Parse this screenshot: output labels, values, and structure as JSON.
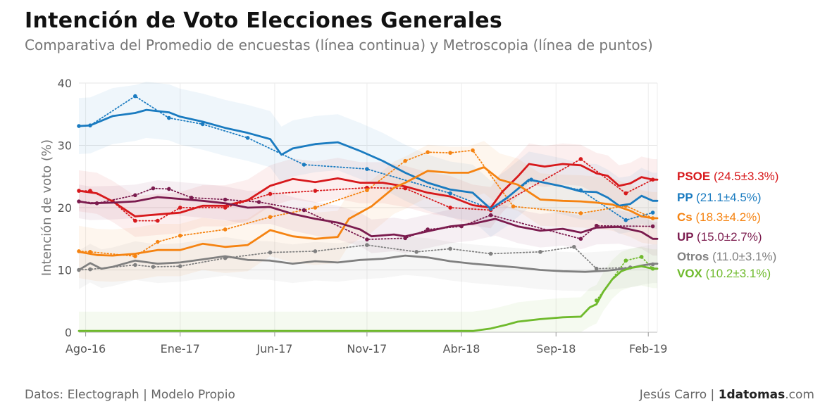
{
  "title": "Intención de Voto Elecciones Generales",
  "subtitle": "Comparativa del Promedio de encuestas (línea continua) y Metroscopia (línea de puntos)",
  "footer": {
    "source": "Datos: Electograph | Modelo Propio",
    "author": "Jesús Carro | ",
    "brand_bold": "1datomas",
    "brand_rest": ".com"
  },
  "chart_data": {
    "type": "line",
    "title": "Intención de Voto Elecciones Generales",
    "ylabel": "Intención de voto (%)",
    "xlabel": "",
    "ylim": [
      0,
      40
    ],
    "yticks": [
      0,
      10,
      20,
      30,
      40
    ],
    "x_range": [
      2016.55,
      2019.12
    ],
    "xticks": [
      {
        "label": "Ago-16",
        "x": 2016.58
      },
      {
        "label": "Ene-17",
        "x": 2017.0
      },
      {
        "label": "Jun-17",
        "x": 2017.42
      },
      {
        "label": "Nov-17",
        "x": 2017.83
      },
      {
        "label": "Abr-18",
        "x": 2018.25
      },
      {
        "label": "Sep-18",
        "x": 2018.67
      },
      {
        "label": "Feb-19",
        "x": 2019.08
      }
    ],
    "series": [
      {
        "name": "PSOE",
        "value_label": "(24.5±3.3%)",
        "color": "#d7191c",
        "ci": 3.3,
        "average": [
          [
            2016.55,
            22.7
          ],
          [
            2016.63,
            22.3
          ],
          [
            2016.7,
            21.0
          ],
          [
            2016.8,
            18.6
          ],
          [
            2016.9,
            18.9
          ],
          [
            2017.0,
            19.2
          ],
          [
            2017.1,
            20.3
          ],
          [
            2017.2,
            20.3
          ],
          [
            2017.3,
            21.2
          ],
          [
            2017.4,
            23.5
          ],
          [
            2017.5,
            24.6
          ],
          [
            2017.6,
            24.1
          ],
          [
            2017.7,
            24.7
          ],
          [
            2017.8,
            24.0
          ],
          [
            2017.9,
            24.0
          ],
          [
            2018.0,
            23.4
          ],
          [
            2018.1,
            22.4
          ],
          [
            2018.2,
            21.8
          ],
          [
            2018.3,
            20.4
          ],
          [
            2018.38,
            20.0
          ],
          [
            2018.43,
            22.5
          ],
          [
            2018.5,
            25.0
          ],
          [
            2018.55,
            27.0
          ],
          [
            2018.62,
            26.6
          ],
          [
            2018.7,
            27.0
          ],
          [
            2018.78,
            26.8
          ],
          [
            2018.85,
            25.5
          ],
          [
            2018.9,
            25.1
          ],
          [
            2018.95,
            23.5
          ],
          [
            2019.0,
            23.9
          ],
          [
            2019.05,
            24.9
          ],
          [
            2019.1,
            24.5
          ],
          [
            2019.12,
            24.5
          ]
        ],
        "metroscopia": [
          [
            2016.55,
            22.7
          ],
          [
            2016.6,
            22.7
          ],
          [
            2016.7,
            21.0
          ],
          [
            2016.8,
            17.9
          ],
          [
            2016.9,
            17.9
          ],
          [
            2017.0,
            20.0
          ],
          [
            2017.2,
            20.0
          ],
          [
            2017.4,
            22.2
          ],
          [
            2017.6,
            22.7
          ],
          [
            2017.83,
            23.2
          ],
          [
            2018.0,
            23.1
          ],
          [
            2018.2,
            20.0
          ],
          [
            2018.38,
            19.6
          ],
          [
            2018.78,
            27.8
          ],
          [
            2018.98,
            22.3
          ],
          [
            2019.1,
            24.5
          ]
        ]
      },
      {
        "name": "PP",
        "value_label": "(21.1±4.5%)",
        "color": "#1a7bc0",
        "ci": 4.5,
        "average": [
          [
            2016.55,
            33.1
          ],
          [
            2016.6,
            33.2
          ],
          [
            2016.7,
            34.7
          ],
          [
            2016.8,
            35.2
          ],
          [
            2016.85,
            35.7
          ],
          [
            2016.95,
            35.3
          ],
          [
            2017.0,
            34.6
          ],
          [
            2017.1,
            33.8
          ],
          [
            2017.2,
            32.8
          ],
          [
            2017.3,
            32.0
          ],
          [
            2017.4,
            31.0
          ],
          [
            2017.45,
            28.5
          ],
          [
            2017.5,
            29.5
          ],
          [
            2017.6,
            30.2
          ],
          [
            2017.7,
            30.5
          ],
          [
            2017.8,
            29.1
          ],
          [
            2017.9,
            27.5
          ],
          [
            2018.0,
            25.6
          ],
          [
            2018.1,
            24.0
          ],
          [
            2018.2,
            22.9
          ],
          [
            2018.3,
            22.4
          ],
          [
            2018.38,
            19.8
          ],
          [
            2018.45,
            21.5
          ],
          [
            2018.55,
            24.5
          ],
          [
            2018.62,
            24.0
          ],
          [
            2018.7,
            23.4
          ],
          [
            2018.78,
            22.6
          ],
          [
            2018.85,
            22.5
          ],
          [
            2018.9,
            21.6
          ],
          [
            2018.95,
            20.3
          ],
          [
            2019.0,
            20.6
          ],
          [
            2019.05,
            21.9
          ],
          [
            2019.1,
            21.1
          ],
          [
            2019.12,
            21.1
          ]
        ],
        "metroscopia": [
          [
            2016.55,
            33.1
          ],
          [
            2016.6,
            33.2
          ],
          [
            2016.8,
            37.9
          ],
          [
            2016.95,
            34.4
          ],
          [
            2017.1,
            33.4
          ],
          [
            2017.3,
            31.2
          ],
          [
            2017.55,
            26.9
          ],
          [
            2017.83,
            26.2
          ],
          [
            2018.2,
            22.3
          ],
          [
            2018.38,
            19.8
          ],
          [
            2018.56,
            24.5
          ],
          [
            2018.78,
            22.8
          ],
          [
            2018.98,
            18.0
          ],
          [
            2019.1,
            19.2
          ]
        ]
      },
      {
        "name": "Cs",
        "value_label": "(18.3±4.2%)",
        "color": "#f58311",
        "ci": 4.2,
        "average": [
          [
            2016.55,
            12.9
          ],
          [
            2016.63,
            12.4
          ],
          [
            2016.7,
            12.3
          ],
          [
            2016.8,
            12.6
          ],
          [
            2016.9,
            13.2
          ],
          [
            2017.0,
            13.2
          ],
          [
            2017.1,
            14.2
          ],
          [
            2017.2,
            13.7
          ],
          [
            2017.3,
            14.0
          ],
          [
            2017.4,
            16.4
          ],
          [
            2017.5,
            15.4
          ],
          [
            2017.6,
            15.0
          ],
          [
            2017.7,
            15.3
          ],
          [
            2017.75,
            18.2
          ],
          [
            2017.85,
            20.2
          ],
          [
            2017.95,
            23.2
          ],
          [
            2018.0,
            24.0
          ],
          [
            2018.1,
            25.9
          ],
          [
            2018.2,
            25.6
          ],
          [
            2018.28,
            25.6
          ],
          [
            2018.35,
            26.5
          ],
          [
            2018.42,
            24.5
          ],
          [
            2018.5,
            23.7
          ],
          [
            2018.55,
            22.5
          ],
          [
            2018.6,
            21.3
          ],
          [
            2018.7,
            21.1
          ],
          [
            2018.78,
            21.0
          ],
          [
            2018.85,
            20.8
          ],
          [
            2018.92,
            20.5
          ],
          [
            2019.0,
            19.5
          ],
          [
            2019.05,
            18.6
          ],
          [
            2019.1,
            18.3
          ],
          [
            2019.12,
            18.3
          ]
        ],
        "metroscopia": [
          [
            2016.55,
            13.0
          ],
          [
            2016.6,
            12.9
          ],
          [
            2016.8,
            12.2
          ],
          [
            2016.9,
            14.5
          ],
          [
            2017.0,
            15.5
          ],
          [
            2017.2,
            16.5
          ],
          [
            2017.4,
            18.5
          ],
          [
            2017.6,
            20.0
          ],
          [
            2017.83,
            22.8
          ],
          [
            2018.0,
            27.5
          ],
          [
            2018.1,
            28.9
          ],
          [
            2018.2,
            28.8
          ],
          [
            2018.3,
            29.2
          ],
          [
            2018.48,
            20.2
          ],
          [
            2018.78,
            19.1
          ],
          [
            2018.98,
            20.3
          ],
          [
            2019.1,
            18.3
          ]
        ]
      },
      {
        "name": "UP",
        "value_label": "(15.0±2.7%)",
        "color": "#7b1b4e",
        "ci": 2.7,
        "average": [
          [
            2016.55,
            21.0
          ],
          [
            2016.6,
            20.7
          ],
          [
            2016.7,
            20.8
          ],
          [
            2016.8,
            21.0
          ],
          [
            2016.9,
            21.7
          ],
          [
            2017.0,
            21.4
          ],
          [
            2017.1,
            21.1
          ],
          [
            2017.2,
            20.7
          ],
          [
            2017.3,
            20.0
          ],
          [
            2017.4,
            20.1
          ],
          [
            2017.5,
            19.0
          ],
          [
            2017.6,
            18.2
          ],
          [
            2017.7,
            17.6
          ],
          [
            2017.8,
            16.5
          ],
          [
            2017.85,
            15.4
          ],
          [
            2017.95,
            15.7
          ],
          [
            2018.0,
            15.4
          ],
          [
            2018.1,
            16.2
          ],
          [
            2018.2,
            17.0
          ],
          [
            2018.3,
            17.4
          ],
          [
            2018.4,
            18.2
          ],
          [
            2018.5,
            17.0
          ],
          [
            2018.6,
            16.3
          ],
          [
            2018.7,
            16.6
          ],
          [
            2018.78,
            16.0
          ],
          [
            2018.85,
            16.8
          ],
          [
            2018.95,
            16.9
          ],
          [
            2019.0,
            16.5
          ],
          [
            2019.05,
            16.1
          ],
          [
            2019.1,
            15.0
          ],
          [
            2019.12,
            15.0
          ]
        ],
        "metroscopia": [
          [
            2016.55,
            21.0
          ],
          [
            2016.63,
            20.7
          ],
          [
            2016.8,
            22.0
          ],
          [
            2016.88,
            23.1
          ],
          [
            2016.95,
            23.0
          ],
          [
            2017.05,
            21.6
          ],
          [
            2017.2,
            21.3
          ],
          [
            2017.35,
            20.9
          ],
          [
            2017.55,
            19.6
          ],
          [
            2017.83,
            14.9
          ],
          [
            2018.0,
            15.1
          ],
          [
            2018.1,
            16.5
          ],
          [
            2018.25,
            17.0
          ],
          [
            2018.38,
            18.8
          ],
          [
            2018.78,
            15.0
          ],
          [
            2018.85,
            17.1
          ],
          [
            2019.1,
            17.0
          ]
        ]
      },
      {
        "name": "Otros",
        "value_label": "(11.0±3.1%)",
        "color": "#808080",
        "ci": 3.1,
        "average": [
          [
            2016.55,
            10.0
          ],
          [
            2016.6,
            11.1
          ],
          [
            2016.65,
            10.2
          ],
          [
            2016.7,
            10.5
          ],
          [
            2016.8,
            11.5
          ],
          [
            2016.9,
            11.0
          ],
          [
            2017.0,
            11.2
          ],
          [
            2017.1,
            11.7
          ],
          [
            2017.2,
            12.2
          ],
          [
            2017.3,
            11.6
          ],
          [
            2017.4,
            11.5
          ],
          [
            2017.5,
            11.0
          ],
          [
            2017.6,
            11.4
          ],
          [
            2017.7,
            11.2
          ],
          [
            2017.8,
            11.6
          ],
          [
            2017.9,
            11.8
          ],
          [
            2018.0,
            12.3
          ],
          [
            2018.1,
            12.0
          ],
          [
            2018.2,
            11.4
          ],
          [
            2018.3,
            11.0
          ],
          [
            2018.4,
            10.7
          ],
          [
            2018.5,
            10.4
          ],
          [
            2018.6,
            10.0
          ],
          [
            2018.7,
            9.8
          ],
          [
            2018.8,
            9.7
          ],
          [
            2018.9,
            9.9
          ],
          [
            2019.0,
            10.3
          ],
          [
            2019.05,
            10.7
          ],
          [
            2019.1,
            11.0
          ],
          [
            2019.12,
            11.0
          ]
        ],
        "metroscopia": [
          [
            2016.55,
            10.0
          ],
          [
            2016.6,
            10.1
          ],
          [
            2016.8,
            10.8
          ],
          [
            2016.88,
            10.5
          ],
          [
            2017.0,
            10.6
          ],
          [
            2017.2,
            11.9
          ],
          [
            2017.4,
            12.8
          ],
          [
            2017.6,
            13.0
          ],
          [
            2017.83,
            14.0
          ],
          [
            2018.05,
            12.9
          ],
          [
            2018.2,
            13.4
          ],
          [
            2018.38,
            12.6
          ],
          [
            2018.6,
            12.9
          ],
          [
            2018.75,
            13.7
          ],
          [
            2018.85,
            10.2
          ],
          [
            2019.0,
            10.4
          ],
          [
            2019.1,
            10.9
          ]
        ]
      },
      {
        "name": "VOX",
        "value_label": "(10.2±3.1%)",
        "color": "#6fba2c",
        "ci": 3.1,
        "average": [
          [
            2016.55,
            0.2
          ],
          [
            2017.0,
            0.2
          ],
          [
            2017.5,
            0.2
          ],
          [
            2018.0,
            0.2
          ],
          [
            2018.3,
            0.2
          ],
          [
            2018.38,
            0.6
          ],
          [
            2018.45,
            1.2
          ],
          [
            2018.5,
            1.7
          ],
          [
            2018.6,
            2.1
          ],
          [
            2018.7,
            2.4
          ],
          [
            2018.78,
            2.5
          ],
          [
            2018.82,
            4.0
          ],
          [
            2018.85,
            4.5
          ],
          [
            2018.88,
            6.5
          ],
          [
            2018.92,
            8.5
          ],
          [
            2018.96,
            9.8
          ],
          [
            2019.0,
            10.3
          ],
          [
            2019.05,
            10.6
          ],
          [
            2019.1,
            10.2
          ],
          [
            2019.12,
            10.2
          ]
        ],
        "metroscopia": [
          [
            2018.85,
            5.1
          ],
          [
            2018.98,
            11.5
          ],
          [
            2019.05,
            12.1
          ],
          [
            2019.1,
            10.2
          ]
        ]
      }
    ]
  }
}
